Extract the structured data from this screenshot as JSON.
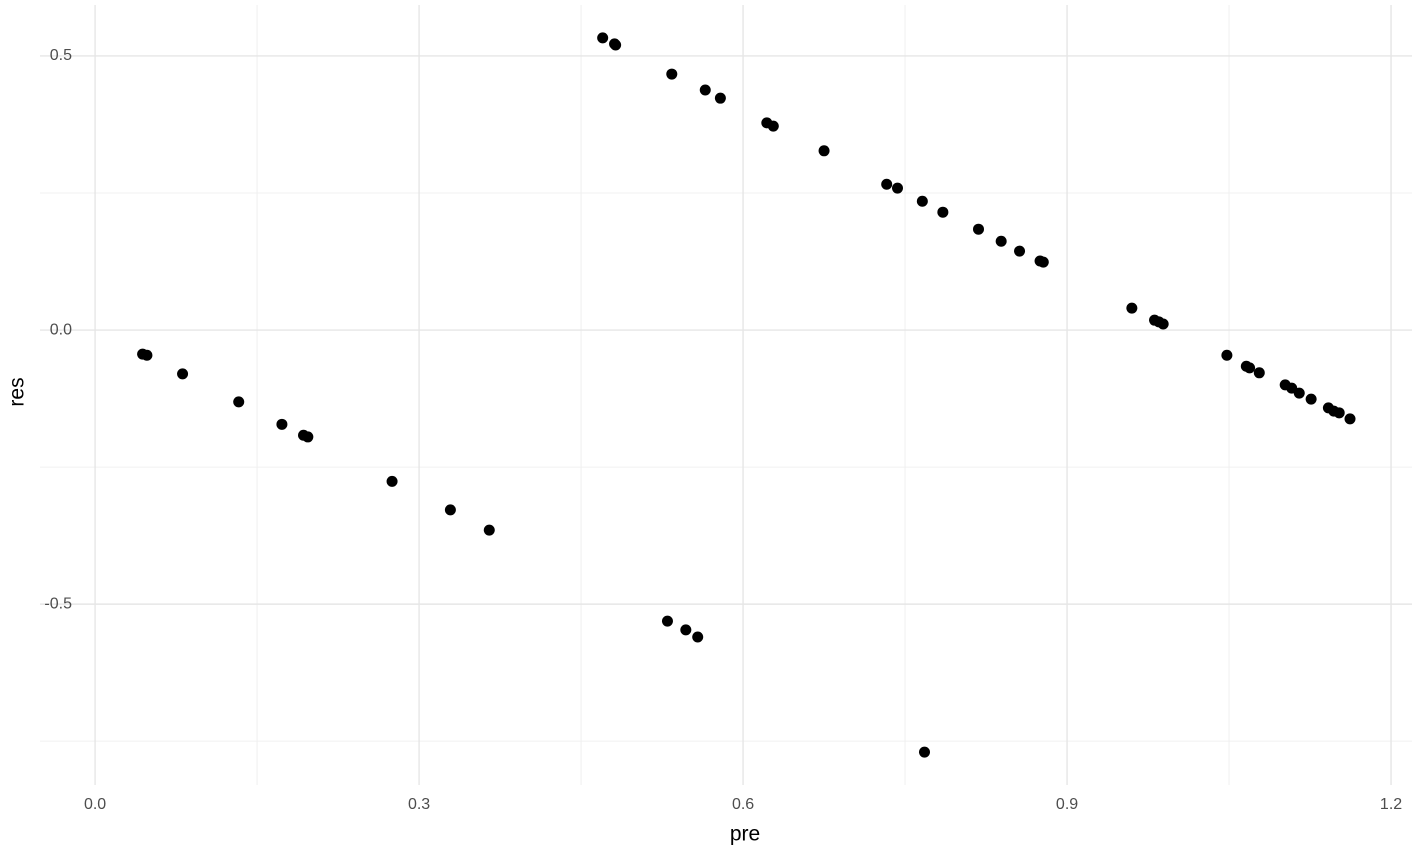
{
  "chart_data": {
    "type": "scatter",
    "x_label": "pre",
    "y_label": "res",
    "x": [
      0.044,
      0.048,
      0.081,
      0.133,
      0.173,
      0.193,
      0.197,
      0.275,
      0.329,
      0.365,
      0.47,
      0.481,
      0.482,
      0.534,
      0.565,
      0.579,
      0.622,
      0.628,
      0.675,
      0.733,
      0.743,
      0.766,
      0.785,
      0.818,
      0.839,
      0.856,
      0.875,
      0.878,
      0.53,
      0.547,
      0.558,
      0.768,
      0.96,
      0.981,
      0.985,
      0.989,
      1.048,
      1.066,
      1.069,
      1.078,
      1.102,
      1.108,
      1.115,
      1.126,
      1.142,
      1.147,
      1.152,
      1.162
    ],
    "values": [
      -0.044,
      -0.046,
      -0.08,
      -0.131,
      -0.172,
      -0.192,
      -0.195,
      -0.276,
      -0.328,
      -0.365,
      0.533,
      0.522,
      0.52,
      0.467,
      0.438,
      0.423,
      0.378,
      0.372,
      0.327,
      0.266,
      0.259,
      0.235,
      0.215,
      0.184,
      0.162,
      0.144,
      0.126,
      0.124,
      -0.531,
      -0.547,
      -0.56,
      -0.77,
      0.04,
      0.018,
      0.015,
      0.011,
      -0.046,
      -0.066,
      -0.069,
      -0.078,
      -0.1,
      -0.106,
      -0.115,
      -0.126,
      -0.142,
      -0.148,
      -0.151,
      -0.162
    ],
    "color": "#000000",
    "xlim": [
      -0.051,
      1.2194
    ],
    "ylim": [
      -0.83,
      0.593
    ],
    "xticks": [
      {
        "value": 0,
        "label": "0.0"
      },
      0.3,
      0.6,
      0.9,
      1.2
    ],
    "yticks": [
      -0.5,
      {
        "value": 0,
        "label": "0.0"
      },
      0.5
    ],
    "x_minor_ticks": [
      0.15,
      0.45,
      0.75,
      1.05
    ],
    "y_minor_ticks": [
      -0.75,
      -0.25,
      0.25
    ],
    "grid": true
  }
}
